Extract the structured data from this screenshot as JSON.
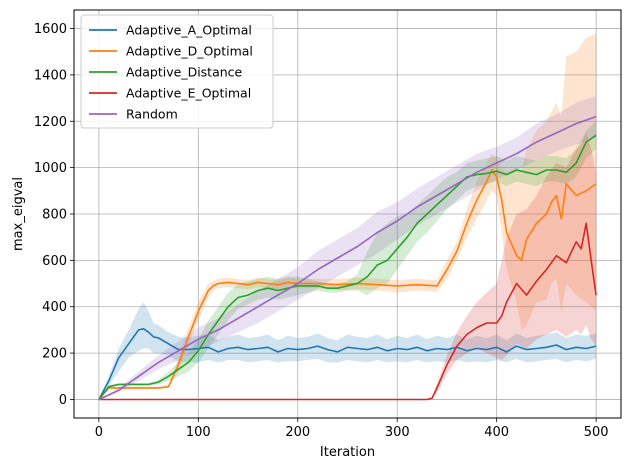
{
  "chart_data": {
    "type": "line",
    "title": "",
    "xlabel": "Iteration",
    "ylabel": "max_eigval",
    "xlim": [
      -25,
      525
    ],
    "ylim": [
      -80,
      1680
    ],
    "xticks": [
      0,
      100,
      200,
      300,
      400,
      500
    ],
    "yticks": [
      0,
      200,
      400,
      600,
      800,
      1000,
      1200,
      1400,
      1600
    ],
    "grid": true,
    "legend_position": "top-left",
    "series": [
      {
        "name": "Adaptive_A_Optimal",
        "color": "#1f77b4",
        "x": [
          0,
          10,
          20,
          30,
          40,
          45,
          50,
          55,
          60,
          70,
          80,
          90,
          100,
          110,
          120,
          130,
          140,
          150,
          160,
          170,
          180,
          190,
          200,
          210,
          220,
          230,
          240,
          250,
          260,
          270,
          280,
          290,
          300,
          310,
          320,
          330,
          340,
          350,
          360,
          370,
          380,
          390,
          400,
          410,
          420,
          430,
          440,
          450,
          460,
          470,
          480,
          490,
          500
        ],
        "y": [
          0,
          80,
          180,
          240,
          300,
          305,
          290,
          270,
          265,
          240,
          215,
          215,
          220,
          225,
          205,
          220,
          225,
          215,
          220,
          225,
          205,
          220,
          215,
          220,
          230,
          215,
          205,
          225,
          220,
          215,
          225,
          210,
          220,
          215,
          225,
          210,
          220,
          215,
          225,
          210,
          220,
          215,
          225,
          205,
          230,
          215,
          220,
          225,
          235,
          215,
          225,
          220,
          230
        ],
        "lower": [
          0,
          60,
          120,
          180,
          210,
          220,
          220,
          200,
          200,
          190,
          160,
          160,
          160,
          170,
          160,
          170,
          170,
          160,
          165,
          170,
          160,
          165,
          165,
          170,
          175,
          160,
          160,
          170,
          165,
          160,
          170,
          160,
          165,
          160,
          170,
          160,
          165,
          160,
          170,
          160,
          165,
          160,
          170,
          160,
          175,
          160,
          165,
          170,
          175,
          160,
          170,
          165,
          175
        ],
        "upper": [
          0,
          100,
          220,
          300,
          390,
          420,
          380,
          330,
          320,
          290,
          270,
          265,
          275,
          280,
          255,
          270,
          280,
          265,
          270,
          280,
          255,
          275,
          265,
          270,
          285,
          265,
          255,
          280,
          270,
          265,
          280,
          260,
          275,
          265,
          280,
          260,
          275,
          265,
          280,
          260,
          275,
          265,
          280,
          255,
          285,
          265,
          275,
          280,
          290,
          265,
          280,
          275,
          285
        ]
      },
      {
        "name": "Adaptive_D_Optimal",
        "color": "#ff7f0e",
        "x": [
          0,
          10,
          60,
          70,
          80,
          90,
          100,
          110,
          115,
          120,
          130,
          140,
          150,
          160,
          170,
          180,
          190,
          200,
          220,
          240,
          260,
          280,
          300,
          320,
          340,
          350,
          360,
          370,
          380,
          390,
          395,
          400,
          405,
          410,
          420,
          425,
          430,
          440,
          450,
          455,
          460,
          465,
          470,
          480,
          490,
          500
        ],
        "y": [
          0,
          50,
          50,
          55,
          150,
          270,
          380,
          470,
          490,
          500,
          505,
          500,
          495,
          505,
          500,
          495,
          505,
          500,
          500,
          495,
          500,
          495,
          490,
          495,
          490,
          560,
          640,
          760,
          860,
          940,
          990,
          960,
          860,
          720,
          620,
          600,
          690,
          760,
          800,
          850,
          880,
          780,
          930,
          880,
          900,
          930
        ],
        "lower": [
          0,
          45,
          45,
          50,
          120,
          230,
          340,
          440,
          470,
          480,
          485,
          480,
          475,
          485,
          480,
          475,
          485,
          480,
          480,
          470,
          475,
          470,
          460,
          470,
          465,
          520,
          600,
          700,
          780,
          860,
          900,
          880,
          720,
          560,
          420,
          300,
          320,
          420,
          430,
          500,
          520,
          380,
          500,
          450,
          420,
          380
        ],
        "upper": [
          0,
          55,
          55,
          60,
          180,
          310,
          420,
          500,
          510,
          520,
          525,
          520,
          515,
          525,
          520,
          515,
          525,
          520,
          520,
          520,
          525,
          520,
          515,
          520,
          515,
          600,
          680,
          820,
          940,
          1020,
          1060,
          1040,
          1000,
          980,
          1000,
          980,
          1080,
          1160,
          1200,
          1240,
          1280,
          1220,
          1480,
          1500,
          1560,
          1580
        ]
      },
      {
        "name": "Adaptive_Distance",
        "color": "#2ca02c",
        "x": [
          0,
          10,
          20,
          50,
          60,
          70,
          80,
          90,
          100,
          110,
          120,
          130,
          140,
          150,
          160,
          170,
          180,
          190,
          200,
          210,
          220,
          230,
          240,
          250,
          260,
          270,
          280,
          290,
          300,
          310,
          320,
          330,
          340,
          350,
          360,
          370,
          380,
          390,
          400,
          410,
          420,
          430,
          440,
          450,
          460,
          470,
          480,
          490,
          500
        ],
        "y": [
          0,
          55,
          65,
          65,
          75,
          100,
          130,
          160,
          210,
          280,
          340,
          400,
          440,
          450,
          470,
          480,
          470,
          480,
          490,
          490,
          490,
          480,
          480,
          490,
          500,
          530,
          580,
          600,
          650,
          700,
          760,
          800,
          840,
          880,
          920,
          960,
          970,
          975,
          985,
          970,
          990,
          980,
          970,
          990,
          990,
          980,
          1020,
          1110,
          1140
        ],
        "lower": [
          0,
          50,
          60,
          60,
          65,
          80,
          100,
          120,
          160,
          220,
          280,
          340,
          390,
          410,
          430,
          440,
          430,
          440,
          450,
          460,
          470,
          460,
          460,
          470,
          470,
          450,
          480,
          500,
          560,
          620,
          680,
          720,
          770,
          820,
          860,
          900,
          920,
          930,
          940,
          920,
          940,
          930,
          920,
          940,
          940,
          930,
          960,
          1040,
          1080
        ],
        "upper": [
          0,
          60,
          70,
          70,
          85,
          120,
          160,
          200,
          260,
          340,
          400,
          460,
          500,
          510,
          520,
          530,
          520,
          530,
          530,
          520,
          510,
          500,
          500,
          510,
          540,
          640,
          720,
          760,
          790,
          800,
          840,
          880,
          920,
          960,
          980,
          1020,
          1030,
          1040,
          1050,
          1030,
          1050,
          1040,
          1030,
          1050,
          1050,
          1040,
          1080,
          1160,
          1200
        ]
      },
      {
        "name": "Adaptive_E_Optimal",
        "color": "#d62728",
        "x": [
          0,
          100,
          200,
          300,
          330,
          335,
          340,
          350,
          360,
          370,
          380,
          390,
          400,
          405,
          410,
          420,
          430,
          440,
          450,
          460,
          470,
          480,
          485,
          490,
          495,
          500
        ],
        "y": [
          0,
          0,
          0,
          0,
          0,
          5,
          50,
          150,
          230,
          280,
          310,
          330,
          330,
          360,
          420,
          500,
          450,
          510,
          560,
          620,
          590,
          680,
          650,
          760,
          600,
          450
        ],
        "lower": [
          0,
          0,
          0,
          0,
          0,
          2,
          30,
          110,
          170,
          200,
          220,
          200,
          180,
          170,
          190,
          240,
          220,
          260,
          280,
          300,
          270,
          300,
          280,
          320,
          260,
          230
        ],
        "upper": [
          0,
          0,
          0,
          0,
          0,
          8,
          70,
          190,
          290,
          360,
          420,
          460,
          500,
          600,
          700,
          800,
          820,
          880,
          960,
          1020,
          1000,
          1080,
          1100,
          1150,
          1080,
          980
        ]
      },
      {
        "name": "Random",
        "color": "#9467bd",
        "x": [
          0,
          20,
          40,
          60,
          80,
          100,
          120,
          140,
          160,
          180,
          200,
          220,
          240,
          260,
          280,
          300,
          320,
          340,
          360,
          380,
          400,
          420,
          440,
          460,
          480,
          500
        ],
        "y": [
          0,
          40,
          100,
          160,
          210,
          260,
          300,
          350,
          400,
          450,
          500,
          560,
          610,
          660,
          720,
          770,
          830,
          880,
          930,
          980,
          1020,
          1060,
          1110,
          1150,
          1190,
          1220
        ],
        "lower": [
          0,
          30,
          80,
          130,
          170,
          210,
          250,
          290,
          330,
          380,
          430,
          480,
          530,
          580,
          630,
          690,
          750,
          800,
          850,
          900,
          950,
          990,
          1030,
          1070,
          1100,
          1130
        ],
        "upper": [
          0,
          50,
          120,
          190,
          250,
          310,
          350,
          410,
          470,
          520,
          570,
          640,
          690,
          740,
          810,
          850,
          910,
          960,
          1010,
          1060,
          1090,
          1130,
          1190,
          1230,
          1280,
          1310
        ]
      }
    ]
  }
}
